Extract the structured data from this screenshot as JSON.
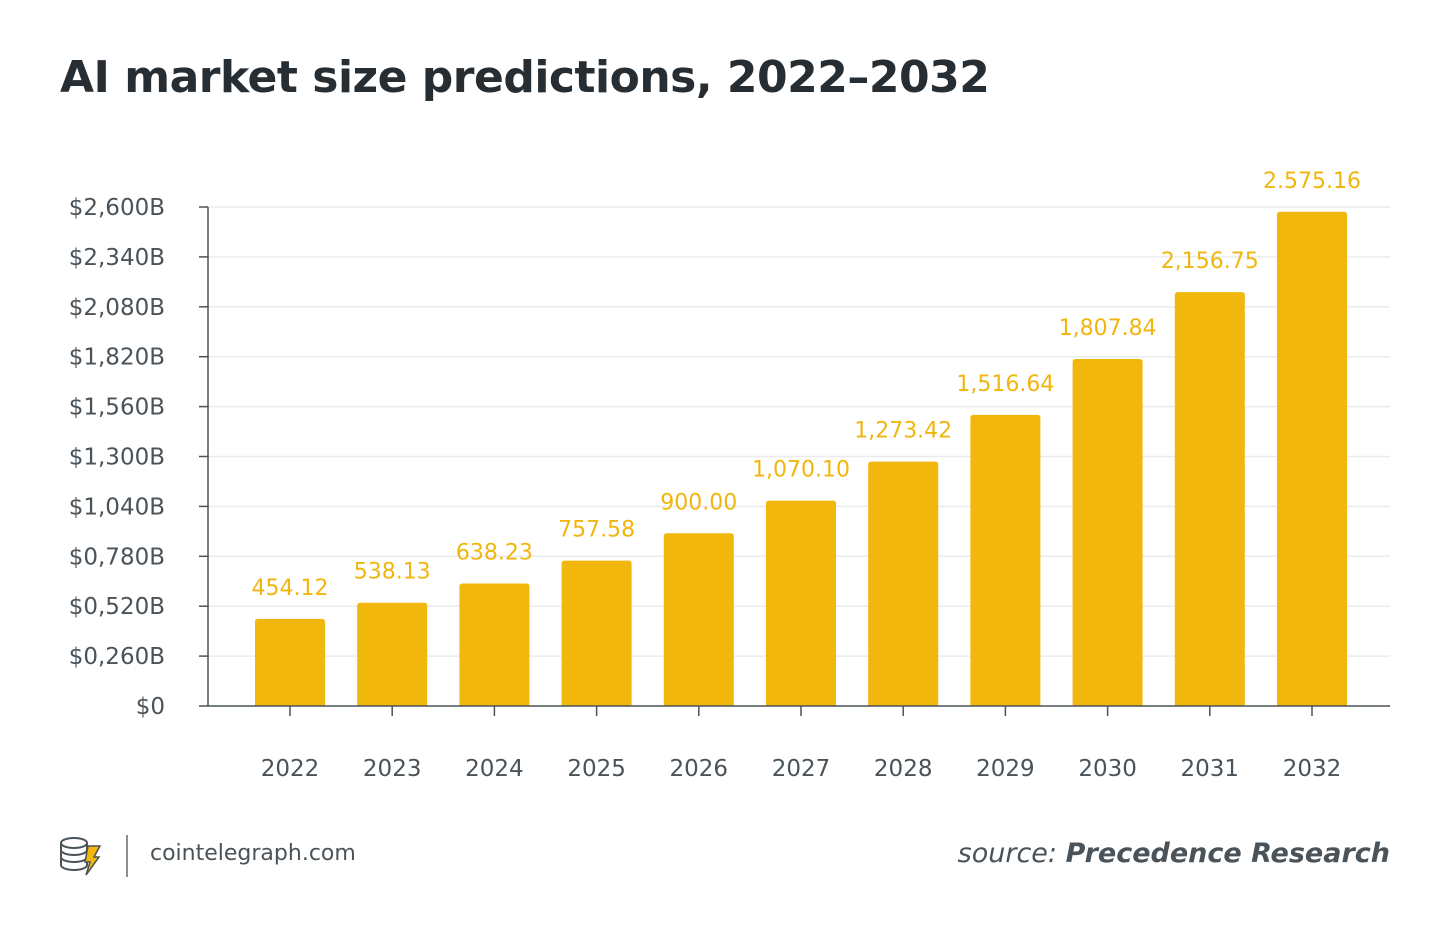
{
  "chart_data": {
    "type": "bar",
    "title": "AI market size predictions, 2022–2032",
    "xlabel": "",
    "ylabel": "",
    "categories": [
      "2022",
      "2023",
      "2024",
      "2025",
      "2026",
      "2027",
      "2028",
      "2029",
      "2030",
      "2031",
      "2032"
    ],
    "values": [
      454.12,
      538.13,
      638.23,
      757.58,
      900.0,
      1070.1,
      1273.42,
      1516.64,
      1807.84,
      2156.75,
      2575.16
    ],
    "value_labels": [
      "454.12",
      "538.13",
      "638.23",
      "757.58",
      "900.00",
      "1,070.10",
      "1,273.42",
      "1,516.64",
      "1,807.84",
      "2,156.75",
      "2.575.16"
    ],
    "yticks": [
      0,
      260,
      520,
      780,
      1040,
      1300,
      1560,
      1820,
      2080,
      2340,
      2600
    ],
    "ytick_labels": [
      "$0",
      "$0,260B",
      "$0,520B",
      "$0,780B",
      "$1,040B",
      "$1,300B",
      "$1,560B",
      "$1,820B",
      "$2,080B",
      "$2,340B",
      "$2,600B"
    ],
    "ylim": [
      0,
      2600
    ],
    "grid": true,
    "bar_color": "#f2b70d",
    "label_color": "#f0b60e"
  },
  "footer": {
    "site": "cointelegraph.com",
    "source_prefix": "source:",
    "source_name": "Precedence Research"
  }
}
